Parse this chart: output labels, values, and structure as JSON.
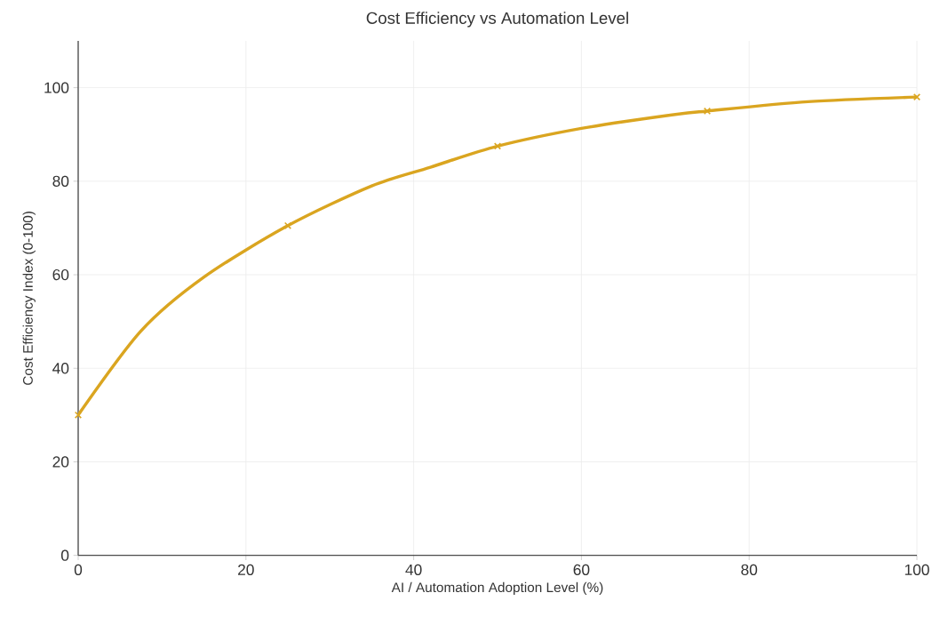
{
  "chart_data": {
    "type": "line",
    "title": "Cost Efficiency vs Automation Level",
    "xlabel": "AI / Automation Adoption Level (%)",
    "ylabel": "Cost Efficiency Index (0-100)",
    "series": [
      {
        "color": "#daa520",
        "marker": "none",
        "x": [
          0,
          7.5,
          15,
          25,
          35,
          42,
          50,
          60,
          70,
          75,
          87,
          100
        ],
        "values": [
          30,
          48,
          59.5,
          70.5,
          79,
          83,
          87.5,
          91.3,
          94,
          95,
          97,
          98
        ]
      },
      {
        "type": "scatter",
        "color": "#daa520",
        "marker": "cross",
        "x": [
          0,
          25,
          50,
          75,
          100
        ],
        "values": [
          30,
          70.5,
          87.5,
          95,
          98
        ]
      }
    ],
    "xlim": [
      0,
      100
    ],
    "ylim": [
      0,
      110
    ],
    "xticks": [
      0,
      20,
      40,
      60,
      80,
      100
    ],
    "yticks": [
      0,
      20,
      40,
      60,
      80,
      100
    ],
    "grid": true
  }
}
